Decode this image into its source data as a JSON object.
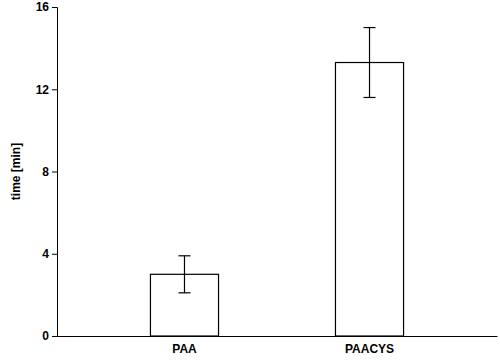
{
  "chart_data": {
    "type": "bar",
    "y_label": "time [min]",
    "categories": [
      "PAA",
      "PAACYS"
    ],
    "values": [
      3.0,
      13.3
    ],
    "errors": [
      0.9,
      1.7
    ],
    "color": "#ffffff",
    "ylim": [
      0,
      16
    ],
    "yticks": [
      0,
      4,
      8,
      12,
      16
    ],
    "grid": false
  }
}
